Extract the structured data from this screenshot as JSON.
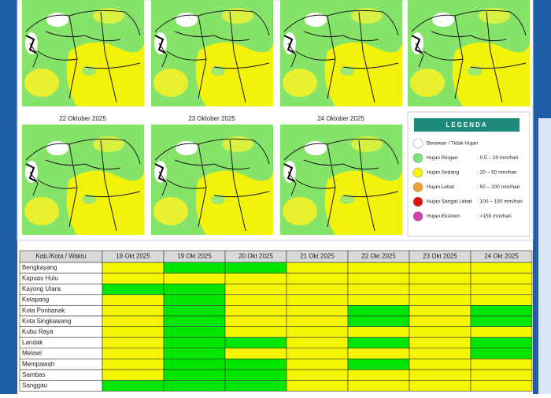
{
  "maps": {
    "labels": [
      "22 Oktober 2025",
      "23 Oktober 2025",
      "24 Oktober 2025"
    ]
  },
  "legend": {
    "title": "LEGENDA",
    "items": [
      {
        "name": "Berawan / Tidak Hujan",
        "color": "#ffffff"
      },
      {
        "name": "Hujan Ringan",
        "range": ": 0.5 – 20 mm/hari",
        "color": "#7fe07f"
      },
      {
        "name": "Hujan Sedang",
        "range": ": 20 – 50 mm/hari",
        "color": "#f5f500"
      },
      {
        "name": "Hujan Lebat",
        "range": ": 50 – 100 mm/hari",
        "color": "#f0a030"
      },
      {
        "name": "Hujan Sangat Lebat",
        "range": ": 100 – 150 mm/hari",
        "color": "#e01010"
      },
      {
        "name": "Hujan Ekstrem",
        "range": ": >150 mm/hari",
        "color": "#d040b0"
      }
    ]
  },
  "table": {
    "header": [
      "Kab./Kota / Waktu",
      "18 Okt 2025",
      "19 Okt 2025",
      "20 Okt 2025",
      "21 Okt 2025",
      "22 Okt 2025",
      "23 Okt 2025",
      "24 Okt 2025"
    ],
    "rows": [
      {
        "name": "Bengkayang",
        "colors": [
          "#f5f500",
          "#00e600",
          "#00e600",
          "#f5f500",
          "#f5f500",
          "#f5f500",
          "#f5f500"
        ]
      },
      {
        "name": "Kapuas Hulu",
        "colors": [
          "#f5f500",
          "#f5f500",
          "#f5f500",
          "#f5f500",
          "#f5f500",
          "#f5f500",
          "#f5f500"
        ]
      },
      {
        "name": "Kayong Utara",
        "colors": [
          "#00e600",
          "#00e600",
          "#f5f500",
          "#f5f500",
          "#f5f500",
          "#f5f500",
          "#f5f500"
        ]
      },
      {
        "name": "Ketapang",
        "colors": [
          "#f5f500",
          "#00e600",
          "#f5f500",
          "#f5f500",
          "#f5f500",
          "#f5f500",
          "#f5f500"
        ]
      },
      {
        "name": "Kota Pontianak",
        "colors": [
          "#f5f500",
          "#00e600",
          "#f5f500",
          "#f5f500",
          "#00e600",
          "#f5f500",
          "#00e600"
        ]
      },
      {
        "name": "Kota Singkawang",
        "colors": [
          "#f5f500",
          "#00e600",
          "#f5f500",
          "#f5f500",
          "#00e600",
          "#f5f500",
          "#00e600"
        ]
      },
      {
        "name": "Kubu Raya",
        "colors": [
          "#f5f500",
          "#00e600",
          "#f5f500",
          "#f5f500",
          "#f5f500",
          "#f5f500",
          "#f5f500"
        ]
      },
      {
        "name": "Landak",
        "colors": [
          "#f5f500",
          "#00e600",
          "#00e600",
          "#f5f500",
          "#00e600",
          "#f5f500",
          "#00e600"
        ]
      },
      {
        "name": "Melawi",
        "colors": [
          "#f5f500",
          "#00e600",
          "#f5f500",
          "#f5f500",
          "#f5f500",
          "#f5f500",
          "#00e600"
        ]
      },
      {
        "name": "Mempawah",
        "colors": [
          "#f5f500",
          "#00e600",
          "#00e600",
          "#f5f500",
          "#00e600",
          "#f5f500",
          "#f5f500"
        ]
      },
      {
        "name": "Sambas",
        "colors": [
          "#f5f500",
          "#00e600",
          "#00e600",
          "#f5f500",
          "#f5f500",
          "#f5f500",
          "#f5f500"
        ]
      },
      {
        "name": "Sanggau",
        "colors": [
          "#00e600",
          "#00e600",
          "#00e600",
          "#f5f500",
          "#f5f500",
          "#f5f500",
          "#f5f500"
        ]
      }
    ]
  }
}
